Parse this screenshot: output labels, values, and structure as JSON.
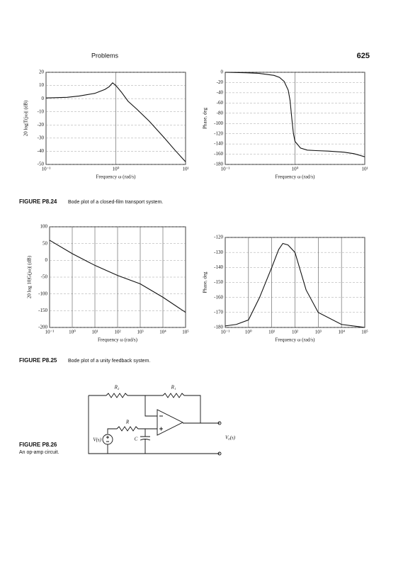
{
  "header": {
    "section": "Problems",
    "page_number": "625"
  },
  "chart_data": [
    {
      "type": "line",
      "xlabel": "Frequency ω (rad/s)",
      "ylabel": "20 log|T(jω)| (dB)",
      "log_x": true,
      "grid": true,
      "color": "#111111",
      "x": [
        0.1,
        0.2,
        0.3,
        0.5,
        0.7,
        0.8,
        0.9,
        1,
        1.2,
        1.5,
        2,
        3,
        5,
        7,
        10
      ],
      "values": [
        0.5,
        1,
        2,
        4,
        7,
        9,
        12,
        10,
        5,
        -2,
        -8,
        -17,
        -30,
        -39,
        -48
      ],
      "xlim": [
        0.1,
        10
      ],
      "ylim": [
        -50,
        20
      ],
      "xticks": [
        {
          "value": 0.1,
          "label": "10⁻¹"
        },
        {
          "value": 1,
          "label": "10⁰"
        },
        {
          "value": 10,
          "label": "10¹"
        }
      ],
      "yticks": [
        -50,
        -40,
        -30,
        -20,
        -10,
        0,
        10,
        20
      ]
    },
    {
      "type": "line",
      "xlabel": "Frequency ω (rad/s)",
      "ylabel": "Phase, deg",
      "log_x": true,
      "grid": true,
      "color": "#111111",
      "x": [
        0.1,
        0.2,
        0.3,
        0.5,
        0.6,
        0.7,
        0.8,
        0.85,
        0.9,
        0.95,
        1,
        1.2,
        1.5,
        2,
        3,
        5,
        7,
        10
      ],
      "values": [
        0,
        -1,
        -2,
        -6,
        -10,
        -18,
        -35,
        -55,
        -90,
        -120,
        -135,
        -148,
        -152,
        -153,
        -154,
        -156,
        -159,
        -165
      ],
      "xlim": [
        0.1,
        10
      ],
      "ylim": [
        -180,
        0
      ],
      "xticks": [
        {
          "value": 0.1,
          "label": "10⁻¹"
        },
        {
          "value": 1,
          "label": "10⁰"
        },
        {
          "value": 10,
          "label": "10¹"
        }
      ],
      "yticks": [
        -180,
        -160,
        -140,
        -120,
        -100,
        -80,
        -60,
        -40,
        -20,
        0
      ]
    },
    {
      "type": "line",
      "xlabel": "Frequency ω (rad/s)",
      "ylabel": "20 log 10|G(jω)| (dB)",
      "log_x": true,
      "grid": true,
      "color": "#111111",
      "x": [
        0.1,
        1,
        10,
        100,
        1000,
        10000,
        100000
      ],
      "values": [
        60,
        20,
        -15,
        -45,
        -70,
        -110,
        -155
      ],
      "xlim": [
        0.1,
        100000
      ],
      "ylim": [
        -200,
        100
      ],
      "xticks": [
        {
          "value": 0.1,
          "label": "10⁻¹"
        },
        {
          "value": 1,
          "label": "10⁰"
        },
        {
          "value": 10,
          "label": "10¹"
        },
        {
          "value": 100,
          "label": "10²"
        },
        {
          "value": 1000,
          "label": "10³"
        },
        {
          "value": 10000,
          "label": "10⁴"
        },
        {
          "value": 100000,
          "label": "10⁵"
        }
      ],
      "yticks": [
        -200,
        -150,
        -100,
        -50,
        0,
        50,
        100
      ]
    },
    {
      "type": "line",
      "xlabel": "Frequency ω (rad/s)",
      "ylabel": "Phase, deg",
      "log_x": true,
      "grid": true,
      "color": "#111111",
      "x": [
        0.1,
        0.3,
        1,
        3,
        10,
        20,
        30,
        50,
        100,
        300,
        1000,
        10000,
        100000
      ],
      "values": [
        -179,
        -178,
        -175,
        -160,
        -140,
        -128,
        -124,
        -125,
        -130,
        -155,
        -170,
        -178,
        -180
      ],
      "xlim": [
        0.1,
        100000
      ],
      "ylim": [
        -180,
        -120
      ],
      "xticks": [
        {
          "value": 0.1,
          "label": "10⁻¹"
        },
        {
          "value": 1,
          "label": "10⁰"
        },
        {
          "value": 10,
          "label": "10¹"
        },
        {
          "value": 100,
          "label": "10²"
        },
        {
          "value": 1000,
          "label": "10³"
        },
        {
          "value": 10000,
          "label": "10⁴"
        },
        {
          "value": 100000,
          "label": "10⁵"
        }
      ],
      "yticks": [
        -180,
        -170,
        -160,
        -150,
        -140,
        -130,
        -120
      ]
    }
  ],
  "captions": [
    {
      "label": "FIGURE P8.24",
      "text": "Bode plot of a closed-film transport system."
    },
    {
      "label": "FIGURE P8.25",
      "text": "Bode plot of a unity feedback system."
    },
    {
      "label": "FIGURE P8.26",
      "text": "An op-amp circuit."
    }
  ],
  "circuit": {
    "labels": [
      "R₂",
      "R₁",
      "R",
      "C",
      "V(s)",
      "V₀(s)"
    ]
  }
}
